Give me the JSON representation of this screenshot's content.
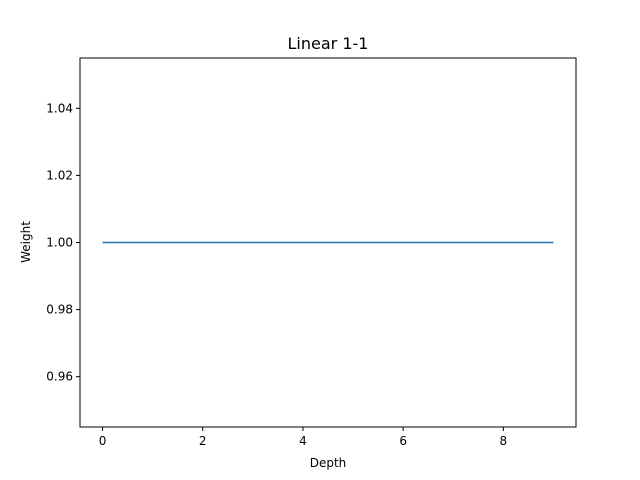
{
  "chart_data": {
    "type": "line",
    "title": "Linear 1-1",
    "xlabel": "Depth",
    "ylabel": "Weight",
    "x": [
      0,
      1,
      2,
      3,
      4,
      5,
      6,
      7,
      8,
      9
    ],
    "series": [
      {
        "values": [
          1.0,
          1.0,
          1.0,
          1.0,
          1.0,
          1.0,
          1.0,
          1.0,
          1.0,
          1.0
        ],
        "color": "#1f77b4"
      }
    ],
    "xlim": [
      -0.45,
      9.45
    ],
    "ylim": [
      0.945,
      1.055
    ],
    "xticks": [
      0,
      2,
      4,
      6,
      8
    ],
    "xtick_labels": [
      "0",
      "2",
      "4",
      "6",
      "8"
    ],
    "yticks": [
      0.96,
      0.98,
      1.0,
      1.02,
      1.04
    ],
    "ytick_labels": [
      "0.96",
      "0.98",
      "1.00",
      "1.02",
      "1.04"
    ],
    "grid": false,
    "legend": "none"
  }
}
